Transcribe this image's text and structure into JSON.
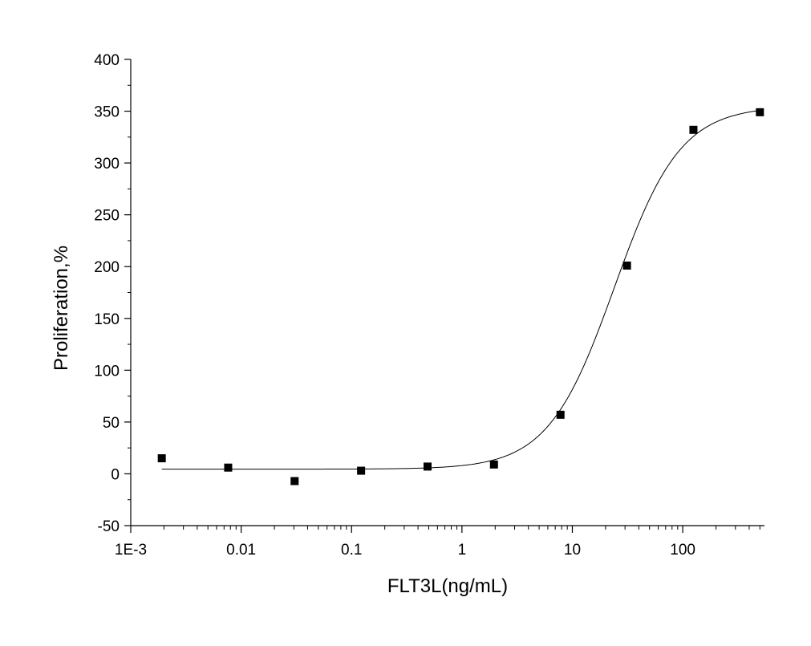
{
  "chart_data": {
    "type": "scatter",
    "title": "",
    "xlabel": "FLT3L(ng/mL)",
    "ylabel": "Proliferation,%",
    "xscale": "log",
    "xlim": [
      0.001,
      550
    ],
    "ylim": [
      -50,
      400
    ],
    "grid": false,
    "legend": "none",
    "x_ticks": [
      {
        "value": 0.001,
        "label": "1E-3"
      },
      {
        "value": 0.01,
        "label": "0.01"
      },
      {
        "value": 0.1,
        "label": "0.1"
      },
      {
        "value": 1,
        "label": "1"
      },
      {
        "value": 10,
        "label": "10"
      },
      {
        "value": 100,
        "label": "100"
      }
    ],
    "y_ticks": [
      {
        "value": -50,
        "label": "-50"
      },
      {
        "value": 0,
        "label": "0"
      },
      {
        "value": 50,
        "label": "50"
      },
      {
        "value": 100,
        "label": "100"
      },
      {
        "value": 150,
        "label": "150"
      },
      {
        "value": 200,
        "label": "200"
      },
      {
        "value": 250,
        "label": "250"
      },
      {
        "value": 300,
        "label": "300"
      },
      {
        "value": 350,
        "label": "350"
      },
      {
        "value": 400,
        "label": "400"
      }
    ],
    "series": [
      {
        "marker": "square",
        "color": "#000000",
        "points": [
          {
            "x": 0.00191,
            "y": 15
          },
          {
            "x": 0.00763,
            "y": 6
          },
          {
            "x": 0.0305,
            "y": -7
          },
          {
            "x": 0.122,
            "y": 3
          },
          {
            "x": 0.488,
            "y": 7
          },
          {
            "x": 1.95,
            "y": 9
          },
          {
            "x": 7.81,
            "y": 57
          },
          {
            "x": 31.25,
            "y": 201
          },
          {
            "x": 125,
            "y": 332
          },
          {
            "x": 500,
            "y": 349
          }
        ]
      }
    ],
    "fit_curve": {
      "color": "#000000",
      "bottom": 4.5,
      "top": 355,
      "ec50": 24,
      "hill": 1.45,
      "x_range": [
        0.00191,
        500
      ]
    }
  }
}
